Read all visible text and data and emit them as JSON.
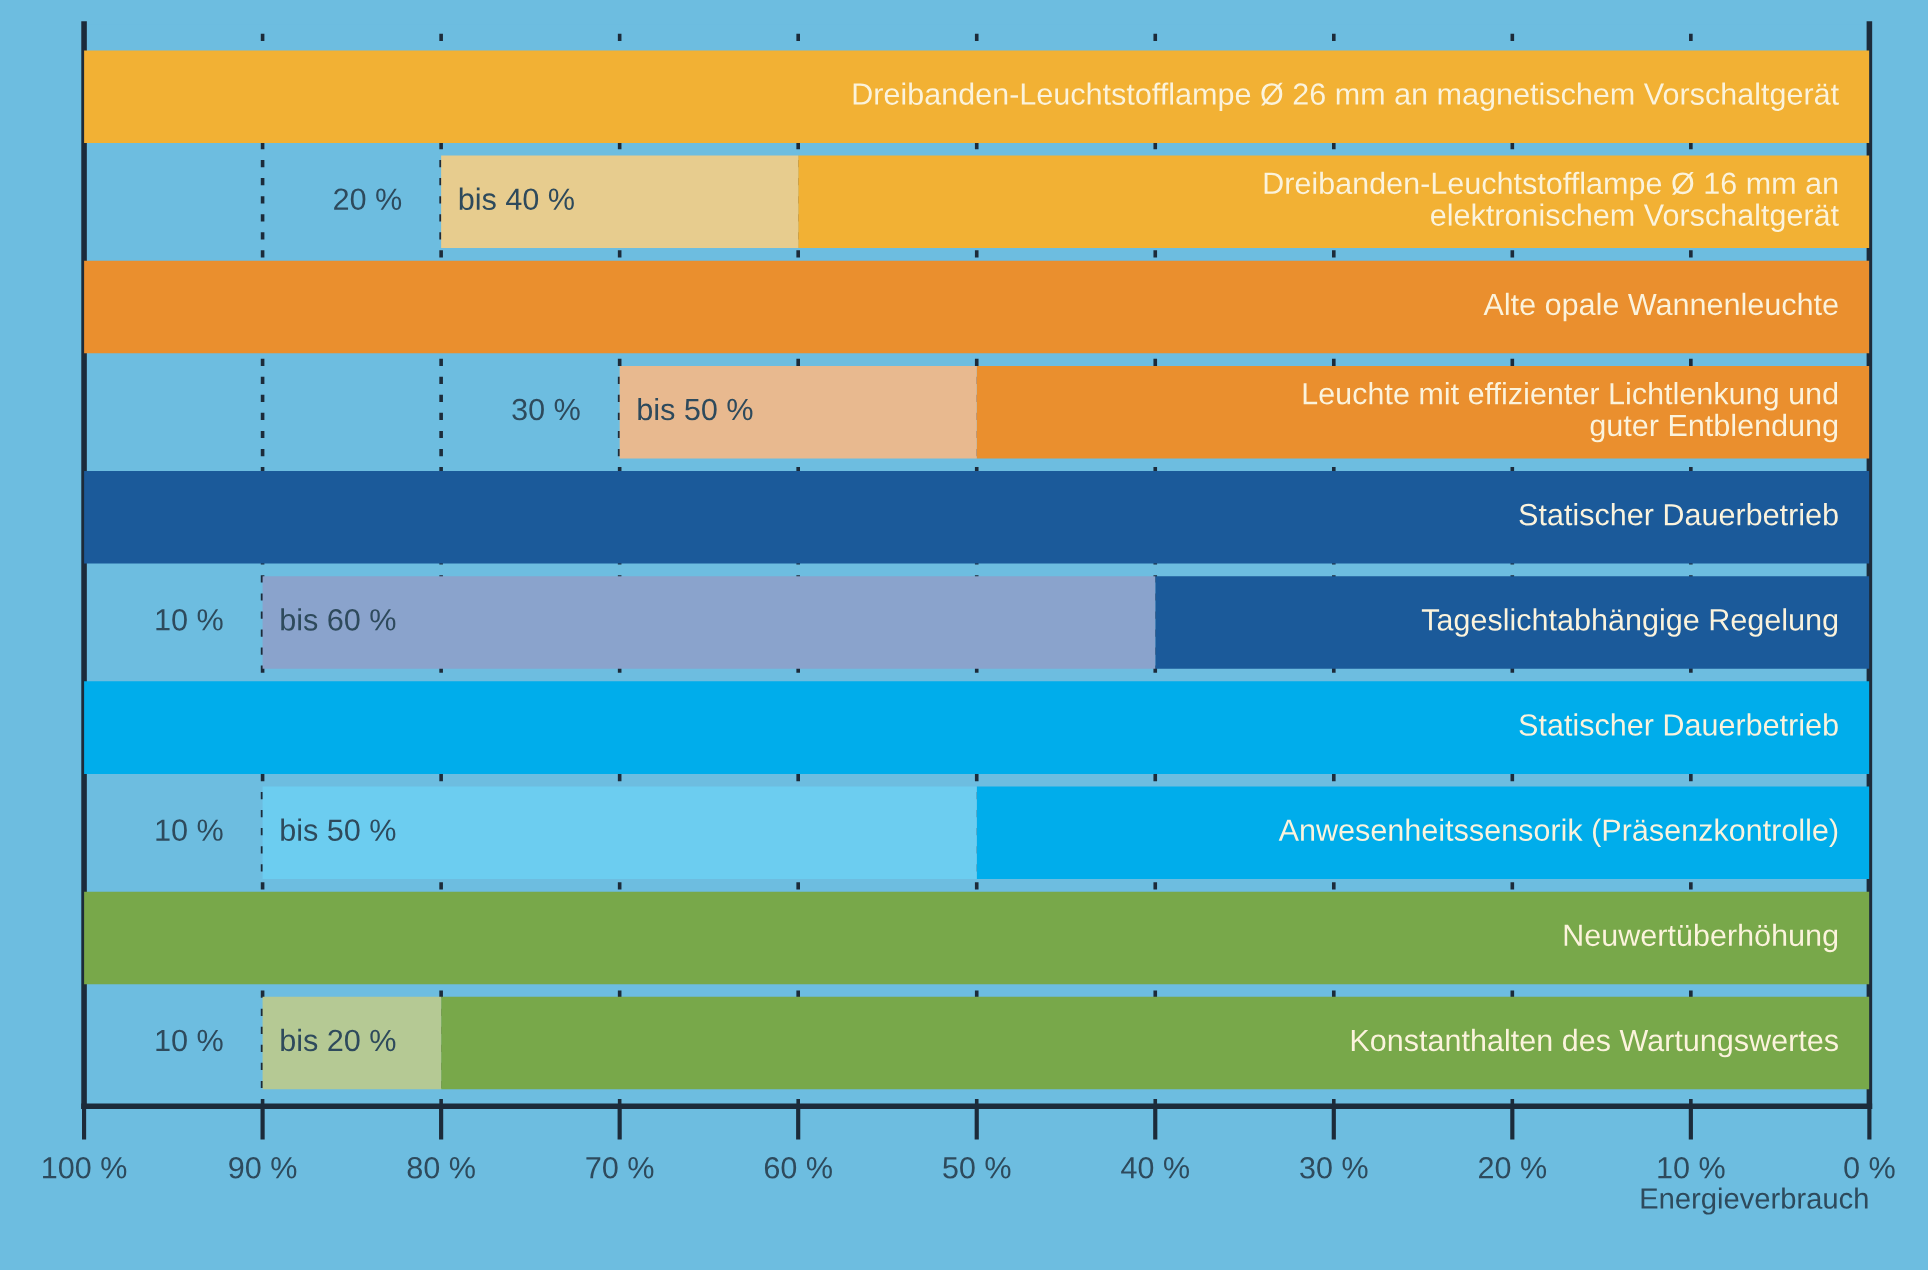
{
  "chart_data": {
    "type": "bar",
    "orientation": "horizontal",
    "stacked": true,
    "categories": [
      "Dreibanden-Leuchtstofflampe Ø 26 mm an magnetischem Vorschaltgerät",
      "Dreibanden-Leuchtstofflampe Ø 16 mm an\nelektronischem Vorschaltgerät",
      "Alte opale Wannenleuchte",
      "Leuchte mit effizienter Lichtlenkung und\nguter Entblendung",
      "Statischer Dauerbetrieb",
      "Tageslichtabhängige Regelung",
      "Statischer Dauerbetrieb",
      "Anwesenheitssensorik (Präsenzkontrolle)",
      "Neuwertüberhöhung",
      "Konstanthalten des Wartungswertes"
    ],
    "xlabel": "Energieverbrauch",
    "series": [
      {
        "colors": [
          "#f2b134",
          "#f2b134",
          "#ea8f2e",
          "#ea8f2e",
          "#1b5a9a",
          "#1b5a9a",
          "#00adeb",
          "#00adeb",
          "#78a84a",
          "#78a84a"
        ],
        "values": [
          100,
          60,
          100,
          50,
          100,
          40,
          100,
          50,
          100,
          80
        ]
      },
      {
        "colors": [
          null,
          "#e7cc8e",
          null,
          "#e8b98f",
          null,
          "#8aa3cc",
          null,
          "#6ccdf0",
          null,
          "#b5c994"
        ],
        "values": [
          null,
          20,
          null,
          20,
          null,
          50,
          null,
          40,
          null,
          10
        ],
        "value_labels": [
          null,
          "bis 40 %",
          null,
          "bis 50 %",
          null,
          "bis 60 %",
          null,
          "bis 50 %",
          null,
          "bis 20 %"
        ]
      }
    ],
    "annotations": [
      {
        "text": "20 %",
        "x": 80,
        "y": "Dreibanden-Leuchtstofflampe Ø 16 mm an\nelektronischem Vorschaltgerät"
      },
      {
        "text": "30 %",
        "x": 70,
        "y": "Leuchte mit effizienter Lichtlenkung und\nguter Entblendung"
      },
      {
        "text": "10 %",
        "x": 90,
        "y": "Tageslichtabhängige Regelung"
      },
      {
        "text": "10 %",
        "x": 90,
        "y": "Anwesenheitssensorik (Präsenzkontrolle)"
      },
      {
        "text": "10 %",
        "x": 90,
        "y": "Konstanthalten des Wartungswertes"
      }
    ],
    "xlim": [
      100,
      0
    ],
    "xticks": [
      {
        "value": 100,
        "label": "100 %"
      },
      {
        "value": 90,
        "label": "90 %"
      },
      {
        "value": 80,
        "label": "80 %"
      },
      {
        "value": 70,
        "label": "70 %"
      },
      {
        "value": 60,
        "label": "60 %"
      },
      {
        "value": 50,
        "label": "50 %"
      },
      {
        "value": 40,
        "label": "40 %"
      },
      {
        "value": 30,
        "label": "30 %"
      },
      {
        "value": 20,
        "label": "20 %"
      },
      {
        "value": 10,
        "label": "10 %"
      },
      {
        "value": 0,
        "label": "0 %"
      }
    ],
    "grid": "x"
  }
}
